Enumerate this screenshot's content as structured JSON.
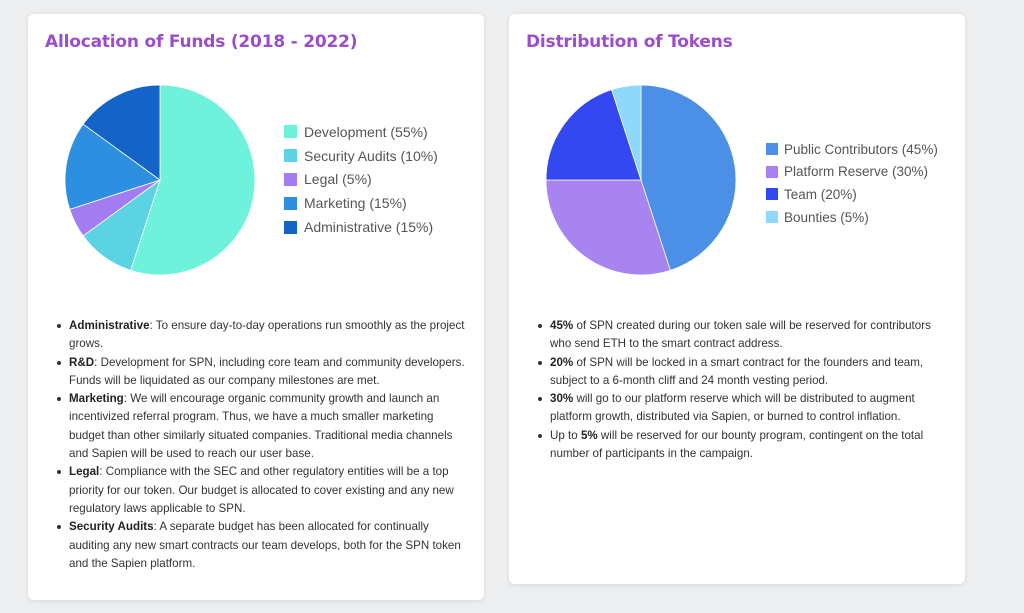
{
  "chart_data": [
    {
      "type": "pie",
      "title": "Allocation of Funds (2018 - 2022)",
      "legend_position": "right",
      "slices": [
        {
          "label": "Development (55%)",
          "value": 55,
          "color": "#6ff2dc"
        },
        {
          "label": "Security Audits (10%)",
          "value": 10,
          "color": "#5bd3e3"
        },
        {
          "label": "Legal (5%)",
          "value": 5,
          "color": "#a27cf0"
        },
        {
          "label": "Marketing (15%)",
          "value": 15,
          "color": "#2d8fe0"
        },
        {
          "label": "Administrative (15%)",
          "value": 15,
          "color": "#1463c6"
        }
      ]
    },
    {
      "type": "pie",
      "title": "Distribution of Tokens",
      "legend_position": "right",
      "slices": [
        {
          "label": "Public Contributors (45%)",
          "value": 45,
          "color": "#4b8fe6"
        },
        {
          "label": "Platform Reserve (30%)",
          "value": 30,
          "color": "#a884f0"
        },
        {
          "label": "Team (20%)",
          "value": 20,
          "color": "#3348f0"
        },
        {
          "label": "Bounties (5%)",
          "value": 5,
          "color": "#8ed9fb"
        }
      ]
    }
  ],
  "left_card": {
    "notes": [
      {
        "term": "Administrative",
        "text": ": To ensure day-to-day operations run smoothly as the project grows."
      },
      {
        "term": "R&D",
        "text": ": Development for SPN, including core team and community developers. Funds will be liquidated as our company milestones are met."
      },
      {
        "term": "Marketing",
        "text": ": We will encourage organic community growth and launch an incentivized referral program. Thus, we have a much smaller marketing budget than other similarly situated companies. Traditional media channels and Sapien will be used to reach our user base."
      },
      {
        "term": "Legal",
        "text": ": Compliance with the SEC and other regulatory entities will be a top priority for our token. Our budget is allocated to cover existing and any new regulatory laws applicable to SPN."
      },
      {
        "term": "Security Audits",
        "text": ": A separate budget has been allocated for continually auditing any new smart contracts our team develops, both for the SPN token and the Sapien platform."
      }
    ]
  },
  "right_card": {
    "notes": [
      {
        "lead": "",
        "term": "45%",
        "text": " of SPN created during our token sale will be reserved for contributors who send ETH to the smart contract address."
      },
      {
        "lead": "",
        "term": "20%",
        "text": " of SPN will be locked in a smart contract for the founders and team, subject to a 6-month cliff and 24 month vesting period."
      },
      {
        "lead": "",
        "term": "30%",
        "text": " will go to our platform reserve which will be distributed to augment platform growth, distributed via Sapien, or burned to control inflation."
      },
      {
        "lead": "Up to ",
        "term": "5%",
        "text": " will be reserved for our bounty program, contingent on the total number of participants in the campaign."
      }
    ]
  }
}
